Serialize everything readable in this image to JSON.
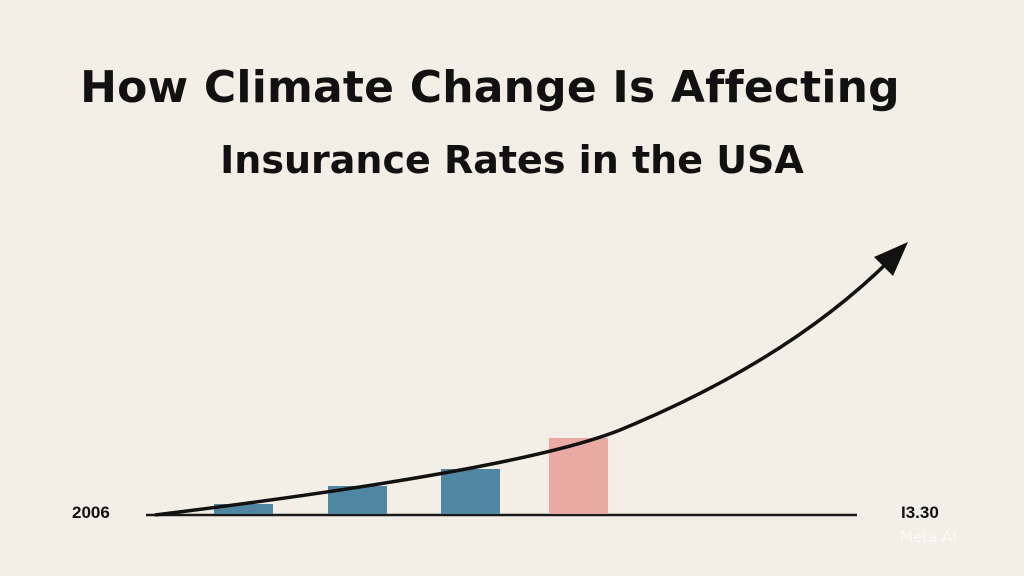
{
  "title_line1": "How Climate Change Is Affecting",
  "title_line2": "Insurance Rates in the USA",
  "watermark": "Meta AI",
  "chart_data": {
    "type": "bar",
    "title": "How Climate Change Is Affecting Insurance Rates in the USA",
    "x_start_label": "2006",
    "x_end_label": "I3.30",
    "categories": [
      "",
      "",
      "",
      ""
    ],
    "values": [
      10,
      28,
      45,
      76
    ],
    "colors": [
      "#4f87a3",
      "#4f87a3",
      "#4f87a3",
      "#e9aaa3"
    ],
    "trend_arrow": "rising curve with arrowhead",
    "grid": false,
    "legend": "none",
    "ylim": [
      0,
      80
    ]
  }
}
